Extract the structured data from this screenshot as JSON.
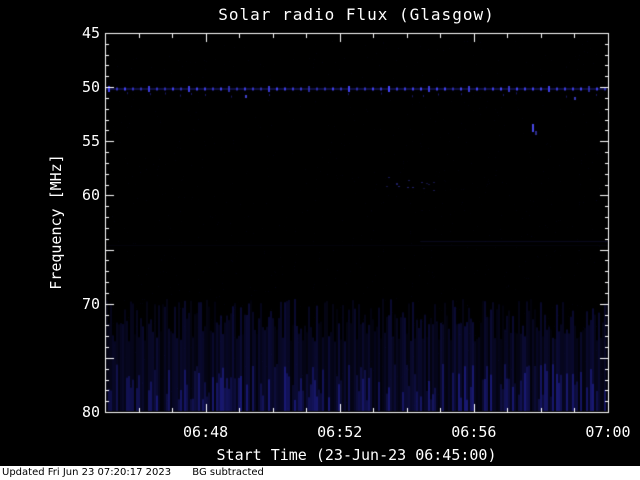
{
  "footer": {
    "updated": "Updated Fri Jun 23 07:20:17 2023",
    "note": "BG subtracted"
  },
  "chart_data": {
    "type": "heatmap",
    "title": "Solar radio Flux (Glasgow)",
    "xlabel": "Start Time (23-Jun-23 06:45:00)",
    "ylabel": "Frequency [MHz]",
    "x_start": "06:45:00",
    "x_end": "07:00:00",
    "x_duration_minutes": 15,
    "x_ticks": [
      {
        "label": "06:48",
        "minute": 3
      },
      {
        "label": "06:52",
        "minute": 7
      },
      {
        "label": "06:56",
        "minute": 11
      },
      {
        "label": "07:00",
        "minute": 15
      }
    ],
    "x_minor_tick_every_minutes": 1,
    "y_ticks_labeled": [
      45,
      50,
      55,
      60,
      70,
      80
    ],
    "y_ticks_unlabeled": [
      65,
      75
    ],
    "ylim": [
      45,
      80
    ],
    "y_axis_inverted": true,
    "grid": false,
    "legend": null,
    "background_color": "#000000",
    "axis_color": "#ffffff",
    "signal_color": "#3c3cff",
    "features": {
      "calibration_band": {
        "description": "bright dashed horizontal interference band spanning full time range",
        "freq_mhz": 50.2,
        "time_span_minutes": [
          0,
          15
        ],
        "dot_spacing_px": 8,
        "color": "#4646ff",
        "intensity": "strong"
      },
      "events": [
        {
          "t_min": 4.2,
          "freq_mhz": 50.9,
          "w": 2,
          "h": 3,
          "alpha": 0.8
        },
        {
          "t_min": 14.0,
          "freq_mhz": 51.1,
          "w": 2,
          "h": 3,
          "alpha": 0.7
        },
        {
          "t_min": 12.75,
          "freq_mhz": 53.8,
          "w": 2,
          "h": 8,
          "alpha": 0.9
        },
        {
          "t_min": 12.85,
          "freq_mhz": 54.3,
          "w": 2,
          "h": 4,
          "alpha": 0.55
        }
      ],
      "speckle_cluster": {
        "t0_min": 8.3,
        "t1_min": 9.8,
        "f0_mhz": 58.3,
        "f1_mhz": 59.6,
        "count": 14,
        "alpha": 0.35
      },
      "faint_lines": [
        {
          "freq_mhz": 64.2,
          "t0_min": 9.4,
          "t1_min": 15,
          "alpha": 0.13
        },
        {
          "freq_mhz": 64.6,
          "t0_min": 0,
          "t1_min": 15,
          "alpha": 0.05
        }
      ],
      "noise_band": {
        "description": "faint broadband vertical striation noise at low frequencies",
        "f_top_min_mhz": 69.5,
        "f_top_max_mhz": 73.5,
        "f_bottom_mhz": 80,
        "alpha_min": 0.05,
        "alpha_max": 0.3
      }
    }
  }
}
